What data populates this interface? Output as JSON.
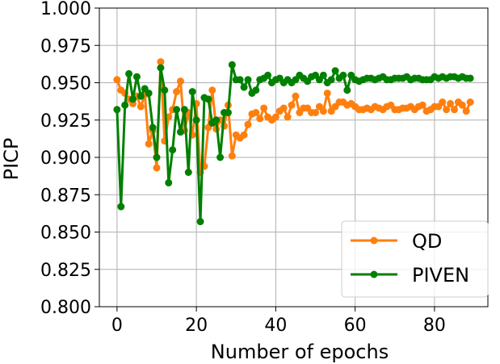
{
  "chart_data": {
    "type": "line",
    "title": "",
    "xlabel": "Number of epochs",
    "ylabel": "PICP",
    "xlim": [
      -4.45,
      93.45
    ],
    "ylim": [
      0.8,
      1.0
    ],
    "grid": true,
    "legend_position": "lower-right",
    "x_ticks": [
      0,
      20,
      40,
      60,
      80
    ],
    "x_tick_labels": [
      "0",
      "20",
      "40",
      "60",
      "80"
    ],
    "y_ticks": [
      0.8,
      0.825,
      0.85,
      0.875,
      0.9,
      0.925,
      0.95,
      0.975,
      1.0
    ],
    "y_tick_labels": [
      "0.800",
      "0.825",
      "0.850",
      "0.875",
      "0.900",
      "0.925",
      "0.950",
      "0.975",
      "1.000"
    ],
    "x": [
      0,
      1,
      2,
      3,
      4,
      5,
      6,
      7,
      8,
      9,
      10,
      11,
      12,
      13,
      14,
      15,
      16,
      17,
      18,
      19,
      20,
      21,
      22,
      23,
      24,
      25,
      26,
      27,
      28,
      29,
      30,
      31,
      32,
      33,
      34,
      35,
      36,
      37,
      38,
      39,
      40,
      41,
      42,
      43,
      44,
      45,
      46,
      47,
      48,
      49,
      50,
      51,
      52,
      53,
      54,
      55,
      56,
      57,
      58,
      59,
      60,
      61,
      62,
      63,
      64,
      65,
      66,
      67,
      68,
      69,
      70,
      71,
      72,
      73,
      74,
      75,
      76,
      77,
      78,
      79,
      80,
      81,
      82,
      83,
      84,
      85,
      86,
      87,
      88,
      89
    ],
    "series": [
      {
        "name": "QD",
        "color": "#ff7f0e",
        "values": [
          0.952,
          0.945,
          0.943,
          0.939,
          0.936,
          0.941,
          0.934,
          0.942,
          0.909,
          0.918,
          0.893,
          0.964,
          0.911,
          0.927,
          0.932,
          0.944,
          0.951,
          0.918,
          0.93,
          0.915,
          0.936,
          0.89,
          0.894,
          0.92,
          0.945,
          0.919,
          0.925,
          0.921,
          0.935,
          0.901,
          0.915,
          0.913,
          0.915,
          0.922,
          0.929,
          0.93,
          0.926,
          0.933,
          0.927,
          0.925,
          0.927,
          0.931,
          0.933,
          0.927,
          0.935,
          0.941,
          0.93,
          0.933,
          0.933,
          0.93,
          0.93,
          0.934,
          0.931,
          0.943,
          0.931,
          0.934,
          0.937,
          0.937,
          0.935,
          0.936,
          0.934,
          0.932,
          0.932,
          0.933,
          0.932,
          0.934,
          0.933,
          0.932,
          0.934,
          0.935,
          0.932,
          0.932,
          0.933,
          0.933,
          0.934,
          0.932,
          0.934,
          0.935,
          0.931,
          0.932,
          0.934,
          0.934,
          0.937,
          0.932,
          0.936,
          0.932,
          0.937,
          0.935,
          0.931,
          0.937
        ]
      },
      {
        "name": "PIVEN",
        "color": "#008000",
        "values": [
          0.932,
          0.867,
          0.935,
          0.956,
          0.939,
          0.954,
          0.941,
          0.946,
          0.943,
          0.92,
          0.9,
          0.96,
          0.945,
          0.883,
          0.905,
          0.932,
          0.917,
          0.932,
          0.89,
          0.944,
          0.925,
          0.857,
          0.94,
          0.939,
          0.923,
          0.925,
          0.9,
          0.93,
          0.93,
          0.962,
          0.952,
          0.952,
          0.947,
          0.952,
          0.943,
          0.945,
          0.952,
          0.953,
          0.955,
          0.95,
          0.952,
          0.953,
          0.95,
          0.952,
          0.95,
          0.952,
          0.955,
          0.953,
          0.951,
          0.954,
          0.955,
          0.952,
          0.955,
          0.95,
          0.952,
          0.958,
          0.953,
          0.955,
          0.945,
          0.955,
          0.952,
          0.951,
          0.952,
          0.953,
          0.953,
          0.952,
          0.953,
          0.954,
          0.952,
          0.952,
          0.953,
          0.953,
          0.953,
          0.954,
          0.952,
          0.953,
          0.953,
          0.952,
          0.952,
          0.952,
          0.954,
          0.953,
          0.954,
          0.953,
          0.954,
          0.954,
          0.953,
          0.954,
          0.953,
          0.953
        ]
      }
    ]
  }
}
